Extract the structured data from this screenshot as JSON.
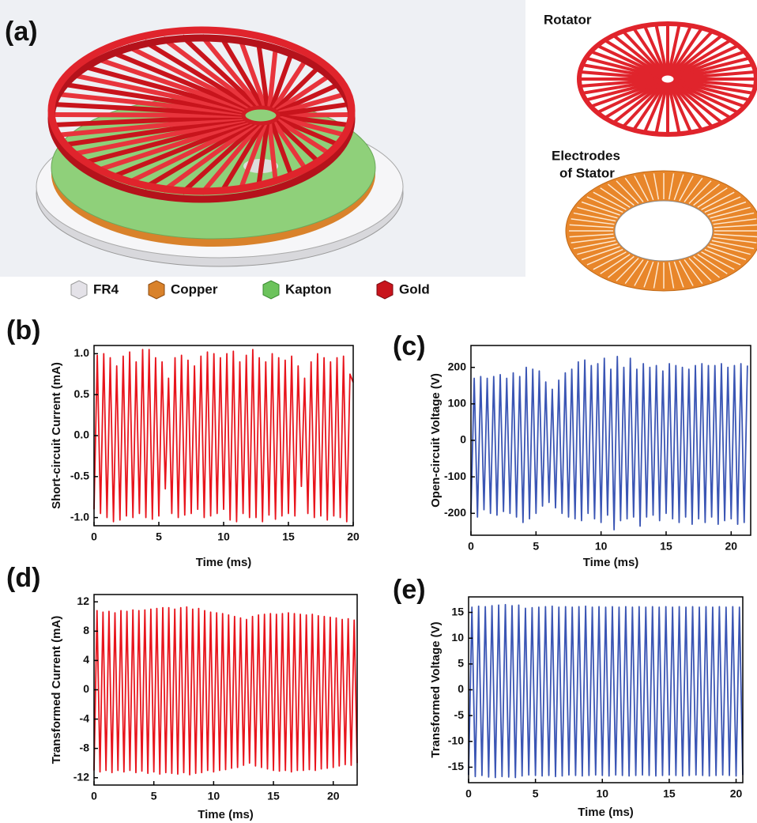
{
  "illustration": {
    "panel_label": "(a)",
    "rotator_label": "Rotator",
    "stator_label": [
      "Electrodes",
      "of Stator"
    ],
    "legend": [
      "FR4",
      "Copper",
      "Kapton",
      "Gold"
    ]
  },
  "chart_data": [
    {
      "type": "line",
      "panel_label": "(b)",
      "xlabel": "Time (ms)",
      "ylabel": "Short-circuit Current (mA)",
      "color": "#e8141c",
      "xlim": [
        0,
        20
      ],
      "ylim": [
        -1.1,
        1.1
      ],
      "xticks": [
        0,
        5,
        10,
        15,
        20
      ],
      "yticks": [
        {
          "value": -1,
          "label": "-1.0"
        },
        -0.5,
        {
          "value": 0,
          "label": "0.0"
        },
        0.5,
        {
          "value": 1,
          "label": "1.0"
        }
      ],
      "x": [
        0,
        0.25,
        0.5,
        0.75,
        1,
        1.25,
        1.5,
        1.75,
        2,
        2.25,
        2.5,
        2.75,
        3,
        3.25,
        3.5,
        3.75,
        4,
        4.25,
        4.5,
        4.75,
        5,
        5.25,
        5.5,
        5.75,
        6,
        6.25,
        6.5,
        6.75,
        7,
        7.25,
        7.5,
        7.75,
        8,
        8.25,
        8.5,
        8.75,
        9,
        9.25,
        9.5,
        9.75,
        10,
        10.25,
        10.5,
        10.75,
        11,
        11.25,
        11.5,
        11.75,
        12,
        12.25,
        12.5,
        12.75,
        13,
        13.25,
        13.5,
        13.75,
        14,
        14.25,
        14.5,
        14.75,
        15,
        15.25,
        15.5,
        15.75,
        16,
        16.25,
        16.5,
        16.75,
        17,
        17.25,
        17.5,
        17.75,
        18,
        18.25,
        18.5,
        18.75,
        19,
        19.25,
        19.5,
        19.75,
        20
      ],
      "values": [
        -0.9,
        0.98,
        -0.95,
        1.0,
        -1.0,
        0.95,
        -1.05,
        0.85,
        -1.03,
        0.97,
        -0.98,
        1.02,
        -1.0,
        0.9,
        -0.95,
        1.05,
        -1.0,
        1.05,
        -1.02,
        0.95,
        -0.98,
        0.9,
        -0.65,
        0.7,
        -0.95,
        0.95,
        -1.0,
        0.98,
        -0.97,
        0.92,
        -0.95,
        0.85,
        -0.9,
        0.97,
        -1.0,
        1.02,
        -0.98,
        1.0,
        -0.95,
        0.95,
        -0.9,
        1.0,
        -1.03,
        1.03,
        -1.05,
        0.9,
        -0.95,
        0.98,
        -1.0,
        1.05,
        -1.0,
        0.95,
        -1.05,
        0.9,
        -0.97,
        1.0,
        -1.02,
        0.95,
        -0.98,
        0.92,
        -0.95,
        0.97,
        -0.98,
        0.85,
        -0.62,
        0.7,
        -0.95,
        0.9,
        -1.0,
        1.0,
        -0.98,
        0.95,
        -1.03,
        0.9,
        -0.98,
        0.95,
        -1.0,
        0.97,
        -1.05,
        0.75,
        0.65
      ]
    },
    {
      "type": "line",
      "panel_label": "(c)",
      "xlabel": "Time (ms)",
      "ylabel": "Open-circuit Voltage (V)",
      "color": "#3a55b4",
      "xlim": [
        0,
        21.5
      ],
      "ylim": [
        -260,
        260
      ],
      "xticks": [
        0,
        5,
        10,
        15,
        20
      ],
      "yticks": [
        -200,
        -100,
        0,
        100,
        200
      ],
      "x": [
        0,
        0.25,
        0.5,
        0.75,
        1,
        1.25,
        1.5,
        1.75,
        2,
        2.25,
        2.5,
        2.75,
        3,
        3.25,
        3.5,
        3.75,
        4,
        4.25,
        4.5,
        4.75,
        5,
        5.25,
        5.5,
        5.75,
        6,
        6.25,
        6.5,
        6.75,
        7,
        7.25,
        7.5,
        7.75,
        8,
        8.25,
        8.5,
        8.75,
        9,
        9.25,
        9.5,
        9.75,
        10,
        10.25,
        10.5,
        10.75,
        11,
        11.25,
        11.5,
        11.75,
        12,
        12.25,
        12.5,
        12.75,
        13,
        13.25,
        13.5,
        13.75,
        14,
        14.25,
        14.5,
        14.75,
        15,
        15.25,
        15.5,
        15.75,
        16,
        16.25,
        16.5,
        16.75,
        17,
        17.25,
        17.5,
        17.75,
        18,
        18.25,
        18.5,
        18.75,
        19,
        19.25,
        19.5,
        19.75,
        20,
        20.25,
        20.5,
        20.75,
        21,
        21.25
      ],
      "values": [
        -200,
        170,
        -210,
        175,
        -190,
        170,
        -200,
        175,
        -205,
        180,
        -195,
        170,
        -200,
        185,
        -210,
        175,
        -225,
        200,
        -215,
        195,
        -200,
        190,
        -180,
        160,
        -170,
        140,
        -185,
        165,
        -200,
        185,
        -210,
        195,
        -215,
        215,
        -220,
        220,
        -200,
        205,
        -215,
        210,
        -225,
        225,
        -205,
        195,
        -245,
        230,
        -220,
        200,
        -215,
        225,
        -210,
        195,
        -235,
        210,
        -210,
        200,
        -205,
        205,
        -220,
        190,
        -200,
        210,
        -215,
        205,
        -225,
        200,
        -210,
        195,
        -230,
        205,
        -215,
        210,
        -225,
        205,
        -210,
        205,
        -230,
        210,
        -220,
        200,
        -215,
        205,
        -230,
        210,
        -225,
        205
      ]
    },
    {
      "type": "line",
      "panel_label": "(d)",
      "xlabel": "Time (ms)",
      "ylabel": "Transformed Current (mA)",
      "color": "#e8141c",
      "xlim": [
        0,
        22
      ],
      "ylim": [
        -13,
        13
      ],
      "xticks": [
        0,
        5,
        10,
        15,
        20
      ],
      "yticks": [
        -12,
        -8,
        -4,
        0,
        4,
        8,
        12
      ],
      "x": [
        0,
        0.25,
        0.5,
        0.75,
        1,
        1.25,
        1.5,
        1.75,
        2,
        2.25,
        2.5,
        2.75,
        3,
        3.25,
        3.5,
        3.75,
        4,
        4.25,
        4.5,
        4.75,
        5,
        5.25,
        5.5,
        5.75,
        6,
        6.25,
        6.5,
        6.75,
        7,
        7.25,
        7.5,
        7.75,
        8,
        8.25,
        8.5,
        8.75,
        9,
        9.25,
        9.5,
        9.75,
        10,
        10.25,
        10.5,
        10.75,
        11,
        11.25,
        11.5,
        11.75,
        12,
        12.25,
        12.5,
        12.75,
        13,
        13.25,
        13.5,
        13.75,
        14,
        14.25,
        14.5,
        14.75,
        15,
        15.25,
        15.5,
        15.75,
        16,
        16.25,
        16.5,
        16.75,
        17,
        17.25,
        17.5,
        17.75,
        18,
        18.25,
        18.5,
        18.75,
        19,
        19.25,
        19.5,
        19.75,
        20,
        20.25,
        20.5,
        20.75,
        21,
        21.25,
        21.5,
        21.75,
        22
      ],
      "values": [
        -11,
        10.8,
        -11.2,
        10.6,
        -11,
        10.7,
        -11.3,
        10.5,
        -11,
        10.8,
        -11.2,
        10.7,
        -11,
        10.9,
        -11.3,
        10.8,
        -11.1,
        10.9,
        -11.4,
        11,
        -11.2,
        11.1,
        -11.5,
        11.2,
        -11.3,
        11.2,
        -11.4,
        11,
        -11.5,
        11.2,
        -11.3,
        11.3,
        -11.6,
        11,
        -11.4,
        11.1,
        -11.3,
        10.8,
        -11,
        10.6,
        -11.2,
        10.5,
        -11,
        10.4,
        -10.9,
        10.2,
        -10.7,
        10,
        -10.6,
        9.8,
        -10.3,
        9.6,
        -10,
        10,
        -10.4,
        10.2,
        -10.6,
        10.3,
        -10.8,
        10.4,
        -11,
        10.3,
        -11.1,
        10.4,
        -11,
        10.5,
        -11.2,
        10.4,
        -11,
        10.3,
        -11,
        10.2,
        -10.9,
        10.3,
        -11,
        10.1,
        -10.8,
        10,
        -10.7,
        9.9,
        -10.6,
        9.8,
        -10.4,
        9.6,
        -10.2,
        9.7,
        -10.3,
        9.5,
        -10
      ]
    },
    {
      "type": "line",
      "panel_label": "(e)",
      "xlabel": "Time (ms)",
      "ylabel": "Transformed Voltage (V)",
      "color": "#3a55b4",
      "xlim": [
        0,
        20.5
      ],
      "ylim": [
        -18,
        18
      ],
      "xticks": [
        0,
        5,
        10,
        15,
        20
      ],
      "yticks": [
        -15,
        -10,
        -5,
        0,
        5,
        10,
        15
      ],
      "x": [
        0,
        0.25,
        0.5,
        0.75,
        1,
        1.25,
        1.5,
        1.75,
        2,
        2.25,
        2.5,
        2.75,
        3,
        3.25,
        3.5,
        3.75,
        4,
        4.25,
        4.5,
        4.75,
        5,
        5.25,
        5.5,
        5.75,
        6,
        6.25,
        6.5,
        6.75,
        7,
        7.25,
        7.5,
        7.75,
        8,
        8.25,
        8.5,
        8.75,
        9,
        9.25,
        9.5,
        9.75,
        10,
        10.25,
        10.5,
        10.75,
        11,
        11.25,
        11.5,
        11.75,
        12,
        12.25,
        12.5,
        12.75,
        13,
        13.25,
        13.5,
        13.75,
        14,
        14.25,
        14.5,
        14.75,
        15,
        15.25,
        15.5,
        15.75,
        16,
        16.25,
        16.5,
        16.75,
        17,
        17.25,
        17.5,
        17.75,
        18,
        18.25,
        18.5,
        18.75,
        19,
        19.25,
        19.5,
        19.75,
        20,
        20.25,
        20.5
      ],
      "values": [
        -16.5,
        16,
        -16.8,
        16.2,
        -16.6,
        16.1,
        -16.9,
        16.3,
        -17,
        16.4,
        -16.8,
        16.5,
        -16.9,
        16.3,
        -17,
        16.4,
        -16.7,
        15.8,
        -16.5,
        15.9,
        -16.6,
        16,
        -16.7,
        16.1,
        -16.6,
        16.2,
        -16.8,
        16,
        -16.7,
        16.1,
        -16.5,
        16,
        -16.6,
        16.1,
        -16.7,
        16.2,
        -16.6,
        16,
        -16.5,
        16.1,
        -16.6,
        16,
        -16.7,
        16.1,
        -16.5,
        16,
        -16.6,
        16.1,
        -16.7,
        16,
        -16.6,
        16.1,
        -16.5,
        16,
        -16.6,
        16.1,
        -16.7,
        16,
        -16.6,
        16.1,
        -16.5,
        16,
        -16.6,
        16.1,
        -16.7,
        16,
        -16.6,
        16.1,
        -16.5,
        16,
        -16.6,
        16.1,
        -16.7,
        16,
        -16.6,
        16.1,
        -16.5,
        16,
        -16.6,
        16.1,
        -16.7,
        16,
        -16.5
      ]
    }
  ]
}
